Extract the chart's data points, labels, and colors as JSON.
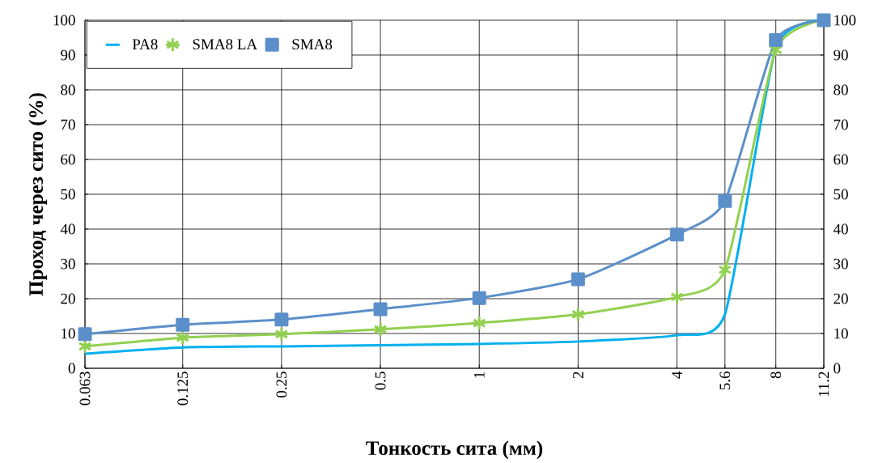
{
  "chart_data": {
    "type": "line",
    "xlabel": "Тонкость сита (мм)",
    "ylabel": "Проход через сито (%)",
    "x": [
      0.063,
      0.125,
      0.25,
      0.5,
      1,
      2,
      4,
      5.6,
      8,
      11.2
    ],
    "log": "x",
    "xlim": [
      0.063,
      11.2
    ],
    "xticks": [
      0.063,
      0.125,
      0.25,
      0.5,
      1,
      2,
      4,
      5.6,
      8,
      11.2
    ],
    "ylim": [
      0,
      100
    ],
    "yticks": [
      0,
      10,
      20,
      30,
      40,
      50,
      60,
      70,
      80,
      90,
      100
    ],
    "y2lim": [
      0,
      100
    ],
    "y2ticks": [
      0,
      10,
      20,
      30,
      40,
      50,
      60,
      70,
      80,
      90,
      100
    ],
    "grid": true,
    "legend": "top left",
    "series": [
      {
        "name": "PA8",
        "color": "#00b0f0",
        "marker": "none",
        "values": [
          4.2,
          6,
          6.3,
          6.6,
          7,
          7.7,
          9.5,
          15.5,
          92,
          100
        ]
      },
      {
        "name": "SMA8 LA",
        "color": "#92d050",
        "marker": "cross",
        "values": [
          6.3,
          8.8,
          9.8,
          11.2,
          13,
          15.5,
          20.5,
          28.3,
          91.5,
          100
        ]
      },
      {
        "name": "SMA8",
        "color": "#5b8fc9",
        "marker": "square",
        "values": [
          9.8,
          12.5,
          14,
          17,
          20.2,
          25.6,
          38.4,
          48.1,
          94.3,
          100
        ]
      }
    ]
  }
}
